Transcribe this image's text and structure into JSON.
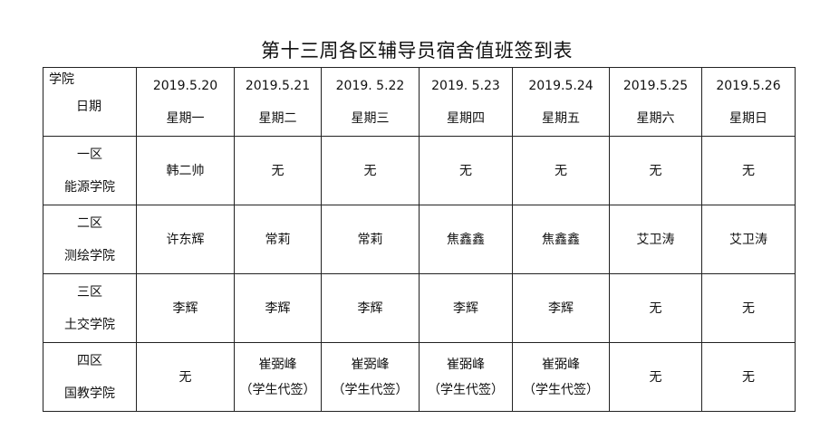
{
  "title": "第十三周各区辅导员宿舍值班签到表",
  "corner": {
    "top": "学院",
    "bottom": "日期"
  },
  "columns": [
    {
      "date": "2019.5.20",
      "weekday": "星期一"
    },
    {
      "date": "2019.5.21",
      "weekday": "星期二"
    },
    {
      "date": "2019. 5.22",
      "weekday": "星期三"
    },
    {
      "date": "2019. 5.23",
      "weekday": "星期四"
    },
    {
      "date": "2019.5.24",
      "weekday": "星期五"
    },
    {
      "date": "2019.5.25",
      "weekday": "星期六"
    },
    {
      "date": "2019.5.26",
      "weekday": "星期日"
    }
  ],
  "rows": [
    {
      "zone": "一区",
      "college": "能源学院",
      "cells": [
        [
          "韩二帅"
        ],
        [
          "无"
        ],
        [
          "无"
        ],
        [
          "无"
        ],
        [
          "无"
        ],
        [
          "无"
        ],
        [
          "无"
        ]
      ]
    },
    {
      "zone": "二区",
      "college": "测绘学院",
      "cells": [
        [
          "许东辉"
        ],
        [
          "常莉"
        ],
        [
          "常莉"
        ],
        [
          "焦鑫鑫"
        ],
        [
          "焦鑫鑫"
        ],
        [
          "艾卫涛"
        ],
        [
          "艾卫涛"
        ]
      ]
    },
    {
      "zone": "三区",
      "college": "土交学院",
      "cells": [
        [
          "李辉"
        ],
        [
          "李辉"
        ],
        [
          "李辉"
        ],
        [
          "李辉"
        ],
        [
          "李辉"
        ],
        [
          "无"
        ],
        [
          "无"
        ]
      ]
    },
    {
      "zone": "四区",
      "college": "国教学院",
      "cells": [
        [
          "无"
        ],
        [
          "崔弼峰",
          "（学生代签）"
        ],
        [
          "崔弼峰",
          "（学生代签）"
        ],
        [
          "崔弼峰",
          "（学生代签）"
        ],
        [
          "崔弼峰",
          "（学生代签）"
        ],
        [
          "无"
        ],
        [
          "无"
        ]
      ]
    }
  ]
}
